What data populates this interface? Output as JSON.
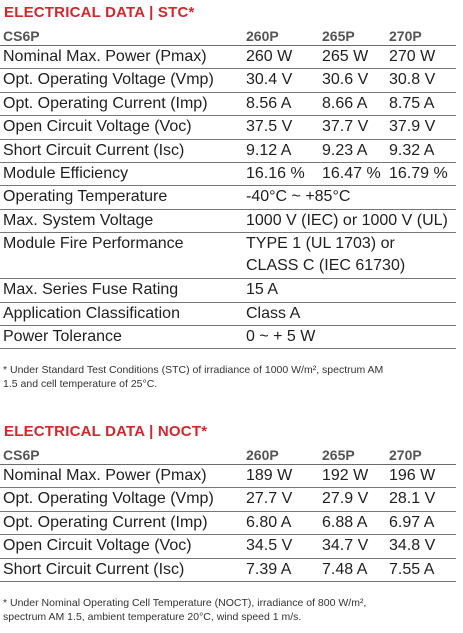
{
  "stc": {
    "title": "ELECTRICAL DATA | STC*",
    "header": [
      "CS6P",
      "260P",
      "265P",
      "270P"
    ],
    "rows": [
      {
        "label": "Nominal Max. Power (Pmax)",
        "values": [
          "260 W",
          "265 W",
          "270 W"
        ]
      },
      {
        "label": "Opt. Operating Voltage (Vmp)",
        "values": [
          "30.4 V",
          "30.6 V",
          "30.8 V"
        ]
      },
      {
        "label": "Opt. Operating Current (Imp)",
        "values": [
          "8.56 A",
          "8.66 A",
          "8.75 A"
        ]
      },
      {
        "label": "Open Circuit Voltage (Voc)",
        "values": [
          "37.5 V",
          "37.7 V",
          "37.9 V"
        ]
      },
      {
        "label": "Short Circuit Current (Isc)",
        "values": [
          "9.12 A",
          "9.23 A",
          "9.32 A"
        ]
      },
      {
        "label": "Module Efficiency",
        "values": [
          "16.16 %",
          "16.47 %",
          "16.79 %"
        ]
      },
      {
        "label": "Operating Temperature",
        "value": "-40°C ~ +85°C"
      },
      {
        "label": "Max. System Voltage",
        "value": "1000 V (IEC) or 1000 V (UL)"
      },
      {
        "label": "Module Fire Performance",
        "value_lines": [
          "TYPE 1 (UL 1703) or",
          "CLASS C (IEC 61730)"
        ]
      },
      {
        "label": "Max. Series Fuse Rating",
        "value": "15 A"
      },
      {
        "label": "Application Classification",
        "value": "Class A"
      },
      {
        "label": "Power Tolerance",
        "value": "0 ~ + 5 W"
      }
    ],
    "footnote_lines": [
      "* Under Standard Test Conditions (STC) of irradiance of 1000 W/m², spectrum AM",
      "1.5 and cell temperature of 25°C."
    ]
  },
  "noct": {
    "title": "ELECTRICAL DATA | NOCT*",
    "header": [
      "CS6P",
      "260P",
      "265P",
      "270P"
    ],
    "rows": [
      {
        "label": "Nominal Max. Power (Pmax)",
        "values": [
          "189 W",
          "192 W",
          "196 W"
        ]
      },
      {
        "label": "Opt. Operating Voltage (Vmp)",
        "values": [
          "27.7 V",
          "27.9 V",
          "28.1 V"
        ]
      },
      {
        "label": "Opt. Operating Current (Imp)",
        "values": [
          "6.80 A",
          "6.88 A",
          "6.97 A"
        ]
      },
      {
        "label": "Open Circuit Voltage (Voc)",
        "values": [
          "34.5 V",
          "34.7 V",
          "34.8 V"
        ]
      },
      {
        "label": "Short Circuit Current (Isc)",
        "values": [
          "7.39 A",
          "7.48 A",
          "7.55 A"
        ]
      }
    ],
    "footnote_lines": [
      "* Under Nominal Operating Cell Temperature (NOCT), irradiance of 800 W/m²,",
      "spectrum AM 1.5, ambient temperature 20°C, wind speed 1 m/s."
    ]
  }
}
